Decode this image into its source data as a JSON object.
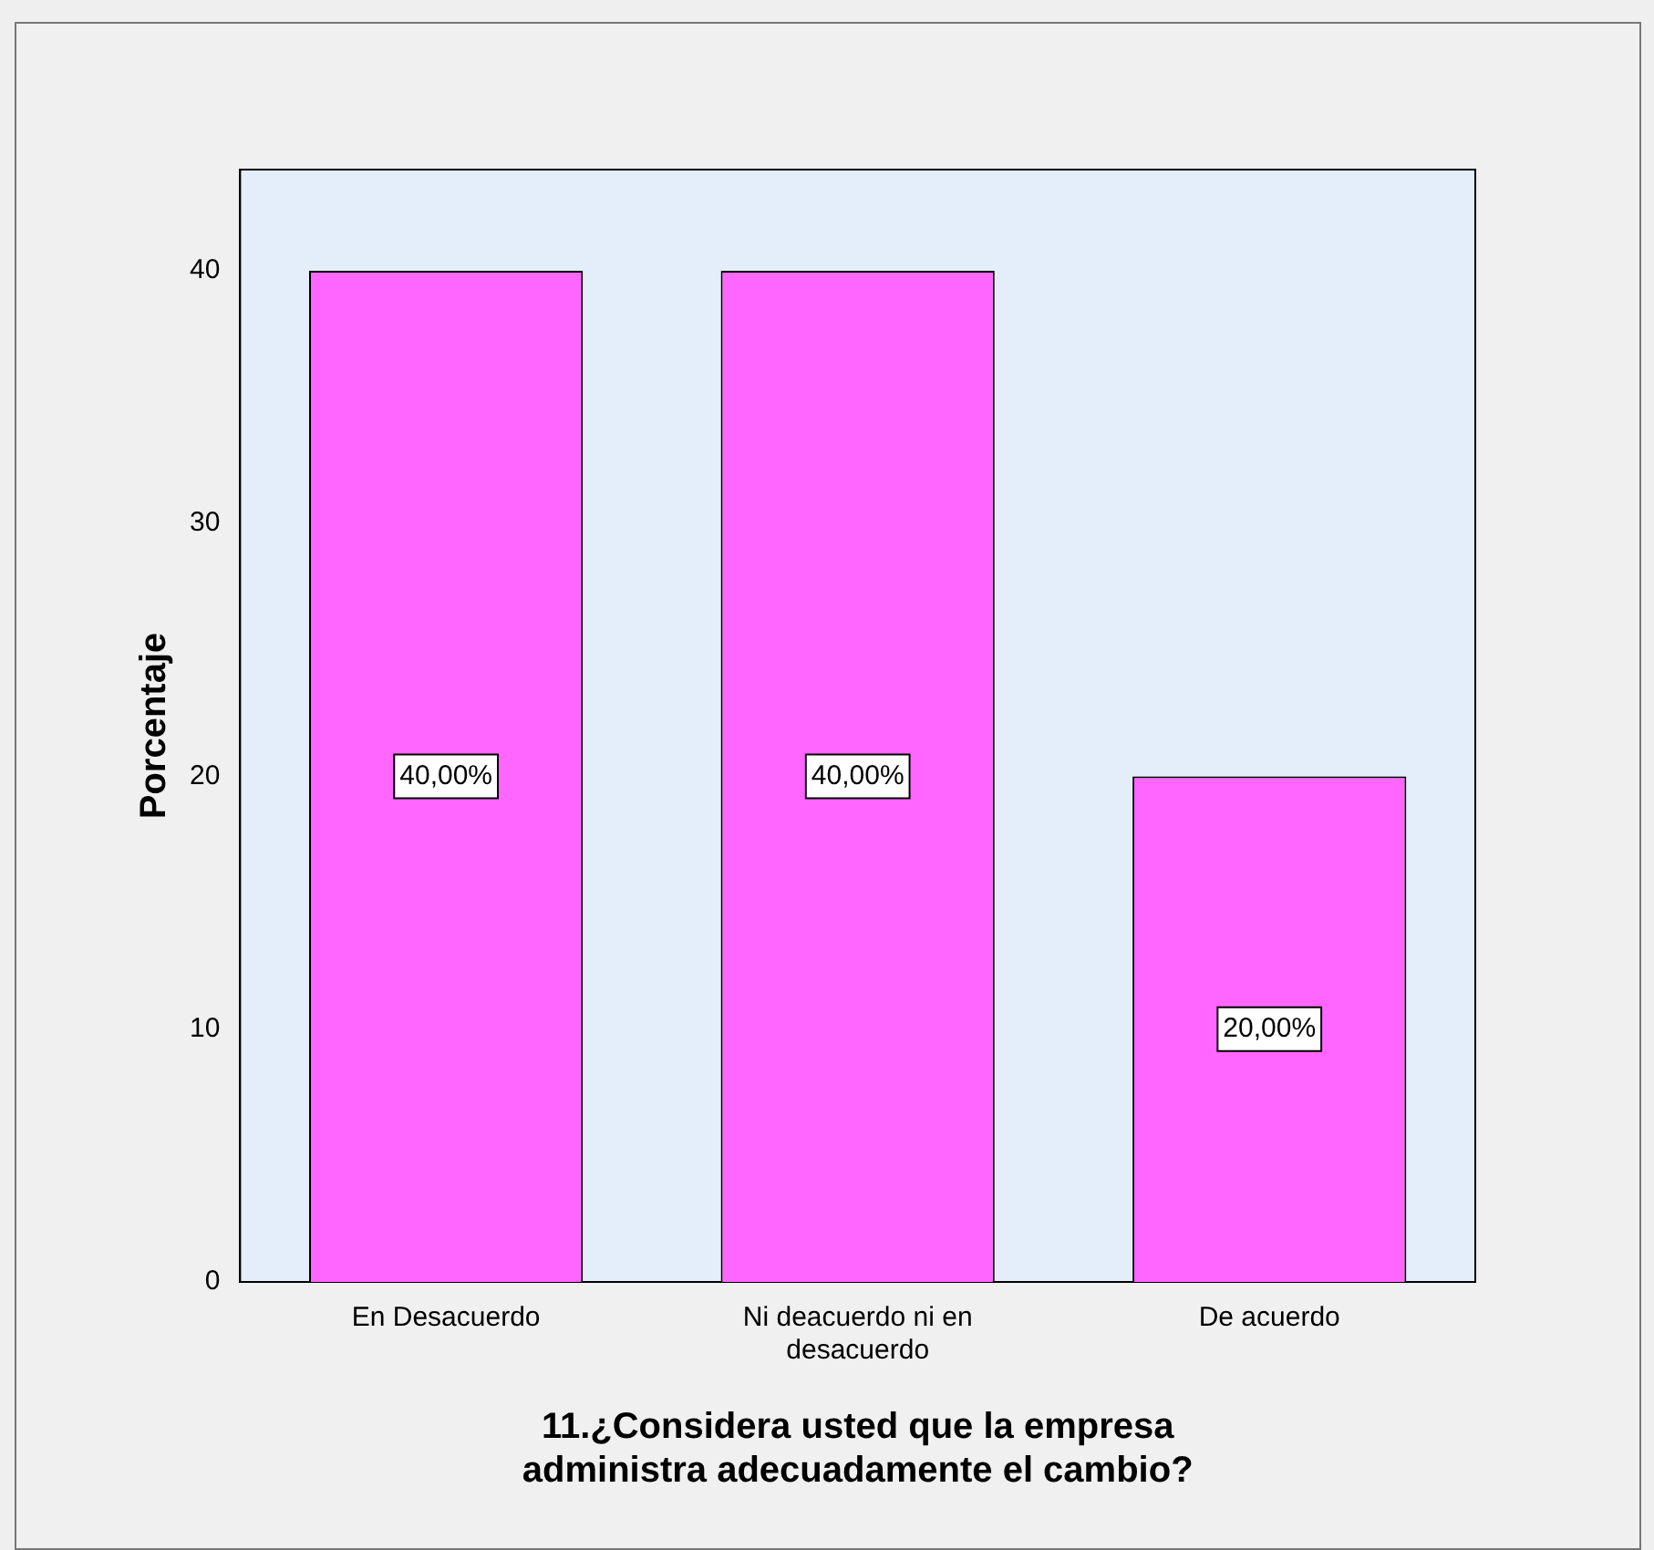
{
  "chart_data": {
    "type": "bar",
    "xlabel": "11.¿Considera usted que la empresa administra adecuadamente el cambio?",
    "ylabel": "Porcentaje",
    "categories": [
      "En Desacuerdo",
      "Ni deacuerdo ni en desacuerdo",
      "De acuerdo"
    ],
    "values": [
      40,
      40,
      20
    ],
    "color": "#ff66ff",
    "value_labels": [
      "40,00%",
      "40,00%",
      "20,00%"
    ],
    "ylim": [
      0,
      44
    ],
    "yticks": [
      0,
      10,
      20,
      30,
      40
    ],
    "grid": false,
    "legend": false
  }
}
